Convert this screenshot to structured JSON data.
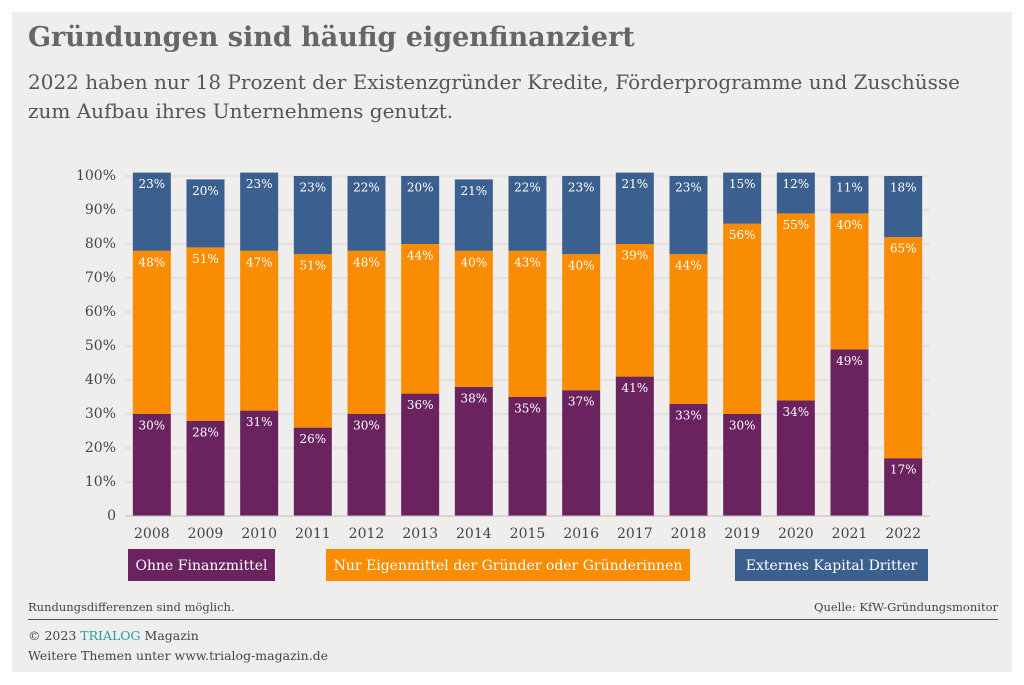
{
  "chart_data": {
    "type": "stacked_bar",
    "title": "Gründungen sind häufig eigenfinanziert",
    "subtitle": [
      "2022 haben nur 18 Prozent der Existenzgründer Kredite, Förderprogramme und Zuschüsse",
      "zum Aufbau ihres Unternehmens genutzt."
    ],
    "categories": [
      "2008",
      "2009",
      "2010",
      "2011",
      "2012",
      "2013",
      "2014",
      "2015",
      "2016",
      "2017",
      "2018",
      "2019",
      "2020",
      "2021",
      "2022"
    ],
    "series": [
      {
        "name": "Ohne Finanzmittel",
        "color": "#6b2360",
        "values": [
          30,
          28,
          31,
          26,
          30,
          36,
          38,
          35,
          37,
          41,
          33,
          30,
          34,
          49,
          17
        ],
        "value_labels": [
          "30%",
          "28%",
          "31%",
          "26%",
          "30%",
          "36%",
          "38%",
          "35%",
          "37%",
          "41%",
          "33%",
          "30%",
          "34%",
          "49%",
          "17%"
        ]
      },
      {
        "name": "Nur Eigenmittel der Gründer oder Gründerinnen",
        "color": "#f98c00",
        "values": [
          48,
          51,
          47,
          51,
          48,
          44,
          40,
          43,
          40,
          39,
          44,
          56,
          55,
          40,
          65
        ],
        "value_labels": [
          "48%",
          "51%",
          "47%",
          "51%",
          "48%",
          "44%",
          "40%",
          "43%",
          "40%",
          "39%",
          "44%",
          "56%",
          "55%",
          "40%",
          "65%"
        ]
      },
      {
        "name": "Externes Kapital Dritter",
        "color": "#3b5f8f",
        "values": [
          23,
          20,
          23,
          23,
          22,
          20,
          21,
          22,
          23,
          21,
          23,
          15,
          12,
          11,
          18
        ],
        "value_labels": [
          "23%",
          "20%",
          "23%",
          "23%",
          "22%",
          "20%",
          "21%",
          "22%",
          "23%",
          "21%",
          "23%",
          "15%",
          "12%",
          "11%",
          "18%"
        ]
      }
    ],
    "ylim": [
      0,
      100
    ],
    "yticks": [
      0,
      {
        "value": 10,
        "label": "10%"
      },
      {
        "value": 20,
        "label": "20%"
      },
      {
        "value": 30,
        "label": "30%"
      },
      {
        "value": 40,
        "label": "40%"
      },
      {
        "value": 50,
        "label": "50%"
      },
      {
        "value": 60,
        "label": "60%"
      },
      {
        "value": 70,
        "label": "70%"
      },
      {
        "value": 80,
        "label": "80%"
      },
      {
        "value": 90,
        "label": "90%"
      },
      {
        "value": 100,
        "label": "100%"
      }
    ],
    "grid": true
  },
  "footer": {
    "note": "Rundungsdifferenzen sind möglich.",
    "source": "Quelle: KfW-Gründungsmonitor",
    "copyright": "© 2023",
    "brand": "TRIALOG",
    "brand_suffix": "Magazin",
    "more": "Weitere Themen unter www.trialog-magazin.de"
  }
}
